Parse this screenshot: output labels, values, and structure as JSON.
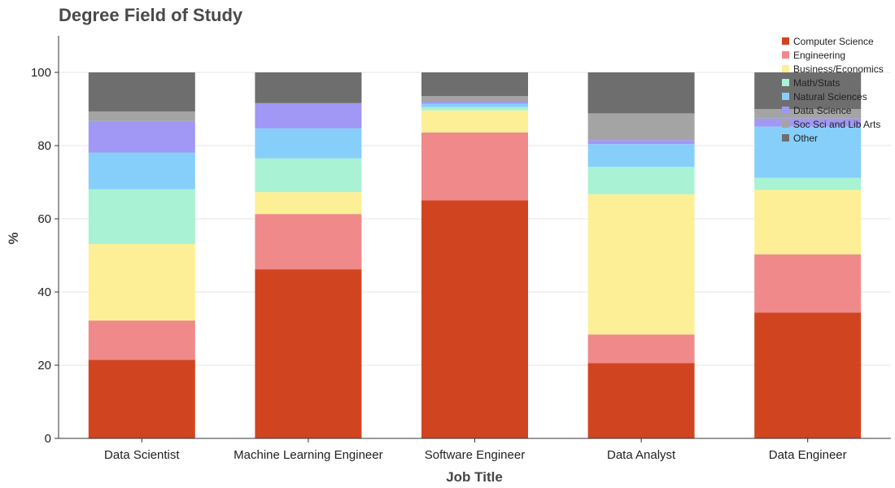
{
  "chart_data": {
    "type": "bar",
    "stacked": true,
    "title": "Degree Field of Study",
    "xlabel": "Job Title",
    "ylabel": "%",
    "ylim": [
      0,
      110
    ],
    "yticks": [
      0,
      20,
      40,
      60,
      80,
      100
    ],
    "grid": "horizontal",
    "legend_position": "top-right",
    "categories": [
      "Data Scientist",
      "Machine Learning Engineer",
      "Software Engineer",
      "Data Analyst",
      "Data Engineer"
    ],
    "series": [
      {
        "name": "Computer Science",
        "color": "#d04520",
        "values": [
          21.5,
          46.2,
          65.0,
          20.6,
          34.4
        ]
      },
      {
        "name": "Engineering",
        "color": "#f08a8a",
        "values": [
          10.7,
          15.1,
          18.6,
          7.8,
          15.9
        ]
      },
      {
        "name": "Business/Economics",
        "color": "#fdef96",
        "values": [
          20.9,
          6.0,
          6.0,
          38.3,
          17.6
        ]
      },
      {
        "name": "Math/Stats",
        "color": "#a9f2d3",
        "values": [
          15.0,
          9.2,
          0.9,
          7.5,
          3.3
        ]
      },
      {
        "name": "Natural Sciences",
        "color": "#86cffa",
        "values": [
          10.0,
          8.2,
          0.9,
          6.2,
          14.0
        ]
      },
      {
        "name": "Data Science",
        "color": "#a098f4",
        "values": [
          8.6,
          6.9,
          0.6,
          1.1,
          2.2
        ]
      },
      {
        "name": "Soc Sci and Lib Arts",
        "color": "#a4a4a4",
        "values": [
          2.6,
          0.0,
          1.5,
          7.3,
          2.6
        ]
      },
      {
        "name": "Other",
        "color": "#6e6e6e",
        "values": [
          10.7,
          8.4,
          6.5,
          11.2,
          10.0
        ]
      }
    ]
  }
}
